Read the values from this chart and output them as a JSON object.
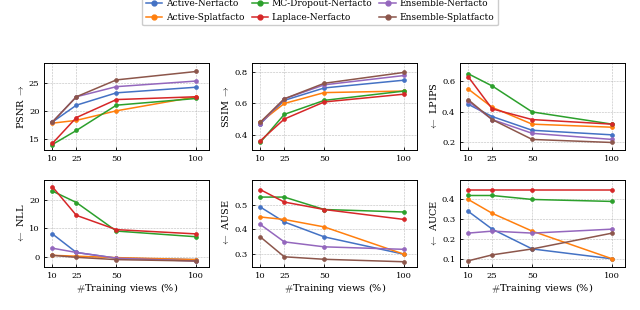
{
  "x": [
    10,
    25,
    50,
    100
  ],
  "series": {
    "Active-Nerfacto": {
      "color": "#4472C4",
      "marker": "o"
    },
    "Active-Splatfacto": {
      "color": "#FF7F0E",
      "marker": "o"
    },
    "MC-Dropout-Nerfacto": {
      "color": "#2CA02C",
      "marker": "o"
    },
    "Laplace-Nerfacto": {
      "color": "#D62728",
      "marker": "o"
    },
    "Ensemble-Nerfacto": {
      "color": "#9467BD",
      "marker": "o"
    },
    "Ensemble-Splatfacto": {
      "color": "#8C564B",
      "marker": "o"
    }
  },
  "PSNR": {
    "Active-Nerfacto": [
      18.0,
      21.0,
      23.2,
      24.2
    ],
    "Active-Splatfacto": [
      17.8,
      18.3,
      20.0,
      22.5
    ],
    "MC-Dropout-Nerfacto": [
      14.0,
      16.5,
      21.0,
      22.2
    ],
    "Laplace-Nerfacto": [
      14.2,
      18.8,
      22.0,
      22.5
    ],
    "Ensemble-Nerfacto": [
      18.0,
      22.5,
      24.3,
      25.3
    ],
    "Ensemble-Splatfacto": [
      18.0,
      22.5,
      25.5,
      27.0
    ]
  },
  "SSIM": {
    "Active-Nerfacto": [
      0.47,
      0.62,
      0.7,
      0.75
    ],
    "Active-Splatfacto": [
      0.48,
      0.6,
      0.67,
      0.68
    ],
    "MC-Dropout-Nerfacto": [
      0.35,
      0.53,
      0.62,
      0.68
    ],
    "Laplace-Nerfacto": [
      0.36,
      0.5,
      0.61,
      0.66
    ],
    "Ensemble-Nerfacto": [
      0.47,
      0.63,
      0.72,
      0.78
    ],
    "Ensemble-Splatfacto": [
      0.48,
      0.63,
      0.73,
      0.8
    ]
  },
  "LPIPS": {
    "Active-Nerfacto": [
      0.45,
      0.37,
      0.28,
      0.25
    ],
    "Active-Splatfacto": [
      0.55,
      0.43,
      0.32,
      0.3
    ],
    "MC-Dropout-Nerfacto": [
      0.65,
      0.57,
      0.4,
      0.32
    ],
    "Laplace-Nerfacto": [
      0.63,
      0.42,
      0.35,
      0.32
    ],
    "Ensemble-Nerfacto": [
      0.47,
      0.35,
      0.26,
      0.22
    ],
    "Ensemble-Splatfacto": [
      0.48,
      0.35,
      0.22,
      0.2
    ]
  },
  "NLL": {
    "Active-Nerfacto": [
      8.0,
      1.5,
      -0.5,
      -1.0
    ],
    "Active-Splatfacto": [
      0.5,
      0.2,
      -0.3,
      -1.0
    ],
    "MC-Dropout-Nerfacto": [
      23.0,
      19.0,
      9.0,
      7.0
    ],
    "Laplace-Nerfacto": [
      24.5,
      14.5,
      9.5,
      8.0
    ],
    "Ensemble-Nerfacto": [
      3.0,
      1.5,
      -0.5,
      -1.5
    ],
    "Ensemble-Splatfacto": [
      0.5,
      -0.2,
      -1.0,
      -1.5
    ]
  },
  "AUSE": {
    "Active-Nerfacto": [
      0.49,
      0.43,
      0.37,
      0.3
    ],
    "Active-Splatfacto": [
      0.45,
      0.44,
      0.41,
      0.3
    ],
    "MC-Dropout-Nerfacto": [
      0.53,
      0.53,
      0.48,
      0.47
    ],
    "Laplace-Nerfacto": [
      0.56,
      0.51,
      0.48,
      0.44
    ],
    "Ensemble-Nerfacto": [
      0.42,
      0.35,
      0.33,
      0.32
    ],
    "Ensemble-Splatfacto": [
      0.37,
      0.29,
      0.28,
      0.27
    ]
  },
  "AUCE": {
    "Active-Nerfacto": [
      0.34,
      0.25,
      0.15,
      0.1
    ],
    "Active-Splatfacto": [
      0.4,
      0.33,
      0.24,
      0.1
    ],
    "MC-Dropout-Nerfacto": [
      0.42,
      0.42,
      0.4,
      0.39
    ],
    "Laplace-Nerfacto": [
      0.45,
      0.45,
      0.45,
      0.45
    ],
    "Ensemble-Nerfacto": [
      0.23,
      0.24,
      0.23,
      0.25
    ],
    "Ensemble-Splatfacto": [
      0.09,
      0.12,
      0.15,
      0.23
    ]
  },
  "legend_order": [
    "Active-Nerfacto",
    "Active-Splatfacto",
    "MC-Dropout-Nerfacto",
    "Laplace-Nerfacto",
    "Ensemble-Nerfacto",
    "Ensemble-Splatfacto"
  ],
  "xlabels": [
    "10",
    "25",
    "50",
    "100"
  ],
  "subplot_configs": [
    {
      "metric": "PSNR",
      "ylabel": "PSNR $\\rightarrow$",
      "ylim": [
        13,
        28.5
      ],
      "yticks": [
        15,
        20,
        25
      ]
    },
    {
      "metric": "SSIM",
      "ylabel": "SSIM $\\rightarrow$",
      "ylim": [
        0.3,
        0.86
      ],
      "yticks": [
        0.4,
        0.6,
        0.8
      ]
    },
    {
      "metric": "LPIPS",
      "ylabel": "$\\leftarrow$ LPIPS",
      "ylim": [
        0.15,
        0.72
      ],
      "yticks": [
        0.2,
        0.4,
        0.6
      ]
    },
    {
      "metric": "NLL",
      "ylabel": "$\\leftarrow$ NLL",
      "ylim": [
        -3.5,
        27
      ],
      "yticks": [
        0,
        10,
        20
      ]
    },
    {
      "metric": "AUSE",
      "ylabel": "$\\leftarrow$ AUSE",
      "ylim": [
        0.25,
        0.6
      ],
      "yticks": [
        0.3,
        0.4,
        0.5
      ]
    },
    {
      "metric": "AUCE",
      "ylabel": "$\\leftarrow$ AUCE",
      "ylim": [
        0.06,
        0.5
      ],
      "yticks": [
        0.1,
        0.2,
        0.3,
        0.4
      ]
    }
  ]
}
